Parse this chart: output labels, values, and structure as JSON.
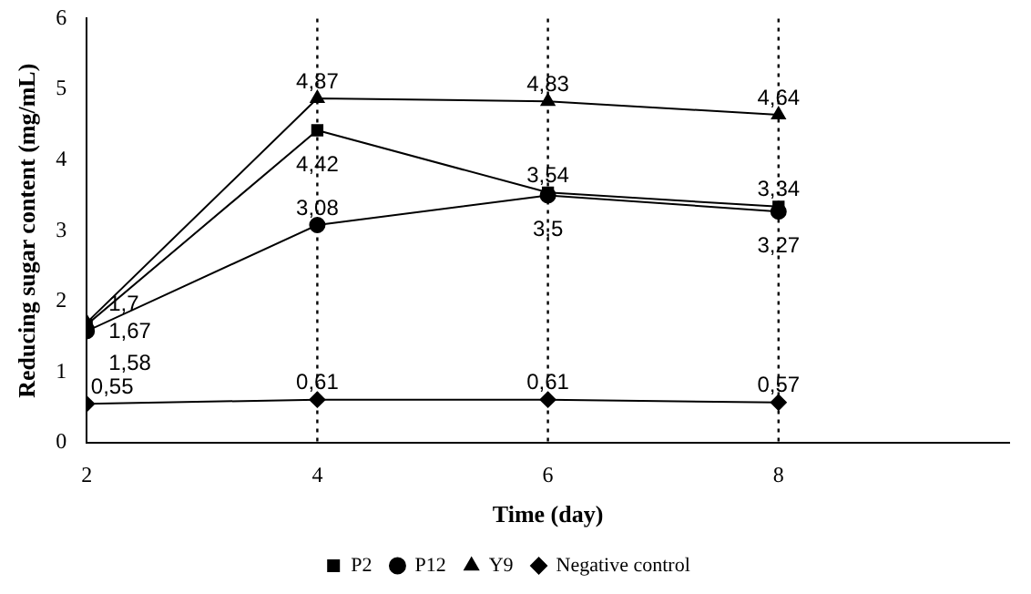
{
  "chart_data": {
    "type": "line",
    "xlabel": "Time (day)",
    "ylabel": "Reducing sugar content (mg/mL)",
    "x": [
      2,
      4,
      6,
      8
    ],
    "series": [
      {
        "name": "P2",
        "color": "#000000",
        "marker": "square",
        "values": [
          1.67,
          4.42,
          3.54,
          3.34
        ],
        "value_labels": [
          "1,67",
          "4,42",
          "3,54",
          "3,34"
        ]
      },
      {
        "name": "P12",
        "color": "#000000",
        "marker": "circle",
        "values": [
          1.58,
          3.08,
          3.5,
          3.27
        ],
        "value_labels": [
          "1,58",
          "3,08",
          "3,5",
          "3,27"
        ]
      },
      {
        "name": "Y9",
        "color": "#000000",
        "marker": "triangle",
        "values": [
          1.7,
          4.87,
          4.83,
          4.64
        ],
        "value_labels": [
          "1,7",
          "4,87",
          "4,83",
          "4,64"
        ]
      },
      {
        "name": "Negative control",
        "color": "#000000",
        "marker": "diamond",
        "values": [
          0.55,
          0.61,
          0.61,
          0.57
        ],
        "value_labels": [
          "0,55",
          "0,61",
          "0,61",
          "0,57"
        ]
      }
    ],
    "xlim": [
      2,
      10
    ],
    "xticks": [
      2,
      4,
      6,
      8
    ],
    "ylim": [
      0,
      6
    ],
    "yticks": [
      0,
      1,
      2,
      3,
      4,
      5,
      6
    ],
    "grid": false,
    "legend": "bottom",
    "ref_lines": [
      {
        "axis": "x",
        "value": 4,
        "line_style": "dotted",
        "color": "#000000"
      },
      {
        "axis": "x",
        "value": 6,
        "line_style": "dotted",
        "color": "#000000"
      },
      {
        "axis": "x",
        "value": 8,
        "line_style": "dotted",
        "color": "#000000"
      }
    ]
  }
}
